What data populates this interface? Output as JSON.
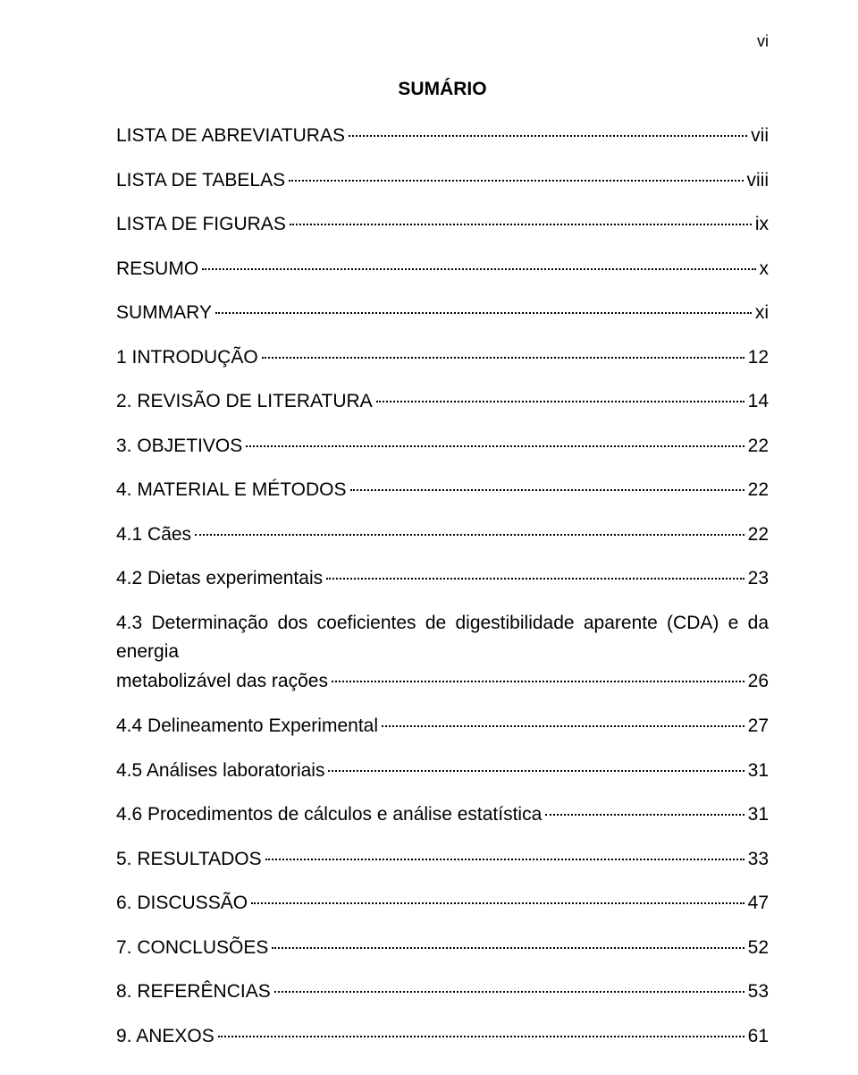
{
  "pageNumber": "vi",
  "title": "SUMÁRIO",
  "entries": [
    {
      "label": "LISTA DE ABREVIATURAS",
      "page": " vii"
    },
    {
      "label": "LISTA DE TABELAS",
      "page": "viii"
    },
    {
      "label": "LISTA DE FIGURAS",
      "page": " ix"
    },
    {
      "label": "RESUMO",
      "page": "x"
    },
    {
      "label": "SUMMARY",
      "page": " xi"
    },
    {
      "label": "1 INTRODUÇÃO",
      "page": "12"
    },
    {
      "label": "2. REVISÃO DE LITERATURA",
      "page": "14"
    },
    {
      "label": "3. OBJETIVOS",
      "page": "22"
    },
    {
      "label": "4. MATERIAL E MÉTODOS",
      "page": "22"
    },
    {
      "label": "4.1 Cães",
      "page": "22"
    },
    {
      "label": "4.2 Dietas experimentais",
      "page": "23"
    },
    {
      "wrap": true,
      "line1": "4.3 Determinação dos coeficientes de digestibilidade aparente (CDA) e da energia",
      "line2": "metabolizável das rações",
      "page": "26"
    },
    {
      "label": "4.4 Delineamento Experimental",
      "page": "27"
    },
    {
      "label": "4.5 Análises laboratoriais",
      "page": "31"
    },
    {
      "label": "4.6 Procedimentos de cálculos e análise estatística",
      "page": "31"
    },
    {
      "label": "5. RESULTADOS",
      "page": "33"
    },
    {
      "label": "6. DISCUSSÃO",
      "page": "47"
    },
    {
      "label": "7. CONCLUSÕES",
      "page": "52"
    },
    {
      "label": "8. REFERÊNCIAS",
      "page": "53"
    },
    {
      "label": "9. ANEXOS",
      "page": "61"
    }
  ]
}
